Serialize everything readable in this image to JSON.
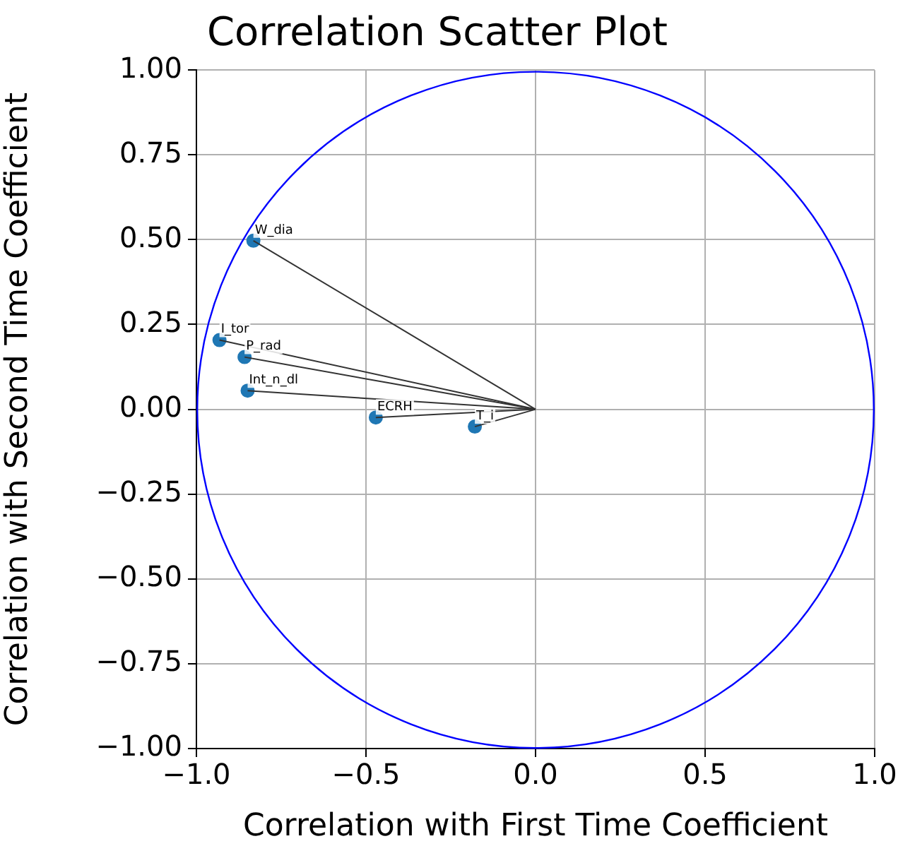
{
  "chart_data": {
    "type": "scatter",
    "title": "Correlation Scatter Plot",
    "xlabel": "Correlation with First Time Coefficient",
    "ylabel": "Correlation with Second Time Coefficient",
    "xlim": [
      -1,
      1
    ],
    "ylim": [
      -1,
      1
    ],
    "xticks": [
      {
        "value": -1,
        "label": "−1.0"
      },
      {
        "value": -0.5,
        "label": "−0.5"
      },
      {
        "value": 0,
        "label": "0.0"
      },
      {
        "value": 0.5,
        "label": "0.5"
      },
      {
        "value": 1,
        "label": "1.0"
      }
    ],
    "yticks": [
      {
        "value": -1,
        "label": "−1.00"
      },
      {
        "value": -0.75,
        "label": "−0.75"
      },
      {
        "value": -0.5,
        "label": "−0.50"
      },
      {
        "value": -0.25,
        "label": "−0.25"
      },
      {
        "value": 0,
        "label": "0.00"
      },
      {
        "value": 0.25,
        "label": "0.25"
      },
      {
        "value": 0.5,
        "label": "0.50"
      },
      {
        "value": 0.75,
        "label": "0.75"
      },
      {
        "value": 1,
        "label": "1.00"
      }
    ],
    "grid": true,
    "series": [
      {
        "type": "line",
        "color": "#333333",
        "x": [
          0,
          -0.832
        ],
        "values": [
          0,
          0.497
        ]
      },
      {
        "type": "line",
        "color": "#333333",
        "x": [
          0,
          -0.932
        ],
        "values": [
          0,
          0.204
        ]
      },
      {
        "type": "line",
        "color": "#333333",
        "x": [
          0,
          -0.858
        ],
        "values": [
          0,
          0.154
        ]
      },
      {
        "type": "line",
        "color": "#333333",
        "x": [
          0,
          -0.849
        ],
        "values": [
          0,
          0.055
        ]
      },
      {
        "type": "line",
        "color": "#333333",
        "x": [
          0,
          -0.471
        ],
        "values": [
          0,
          -0.024
        ]
      },
      {
        "type": "line",
        "color": "#333333",
        "x": [
          0,
          -0.179
        ],
        "values": [
          0,
          -0.051
        ]
      },
      {
        "color": "#1f77b4",
        "marker": "circle",
        "x": [
          -0.832,
          -0.932,
          -0.858,
          -0.849,
          -0.471,
          -0.179
        ],
        "values": [
          0.497,
          0.204,
          0.154,
          0.055,
          -0.024,
          -0.051
        ]
      }
    ],
    "annotations": [
      {
        "text": "W_dia",
        "x": -0.832,
        "y": 0.497
      },
      {
        "text": "I_tor",
        "x": -0.932,
        "y": 0.204
      },
      {
        "text": "P_rad",
        "x": -0.858,
        "y": 0.154
      },
      {
        "text": "Int_n_dl",
        "x": -0.849,
        "y": 0.055
      },
      {
        "text": "ECRH",
        "x": -0.471,
        "y": -0.024
      },
      {
        "text": "T_i",
        "x": -0.179,
        "y": -0.051
      }
    ]
  }
}
